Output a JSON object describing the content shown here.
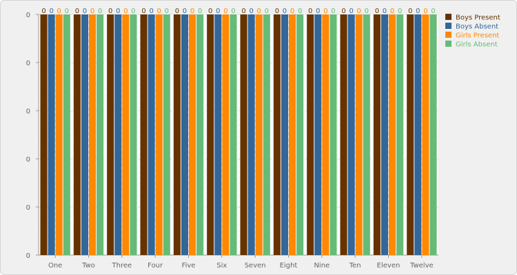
{
  "chart_data": {
    "type": "bar",
    "categories": [
      "One",
      "Two",
      "Three",
      "Four",
      "Five",
      "Six",
      "Seven",
      "Eight",
      "Nine",
      "Ten",
      "Eleven",
      "Twelve"
    ],
    "series": [
      {
        "name": "Boys Present",
        "color": "#663300",
        "values": [
          0,
          0,
          0,
          0,
          0,
          0,
          0,
          0,
          0,
          0,
          0,
          0
        ]
      },
      {
        "name": "Boys Absent",
        "color": "#336699",
        "values": [
          0,
          0,
          0,
          0,
          0,
          0,
          0,
          0,
          0,
          0,
          0,
          0
        ]
      },
      {
        "name": "Girls Present",
        "color": "#ff8800",
        "values": [
          0,
          0,
          0,
          0,
          0,
          0,
          0,
          0,
          0,
          0,
          0,
          0
        ]
      },
      {
        "name": "Girls Absent",
        "color": "#66bb77",
        "values": [
          0,
          0,
          0,
          0,
          0,
          0,
          0,
          0,
          0,
          0,
          0,
          0
        ]
      }
    ],
    "y_ticks": [
      "0",
      "0",
      "0",
      "0",
      "0",
      "0"
    ],
    "grid": true,
    "legend_position": "top-right"
  }
}
